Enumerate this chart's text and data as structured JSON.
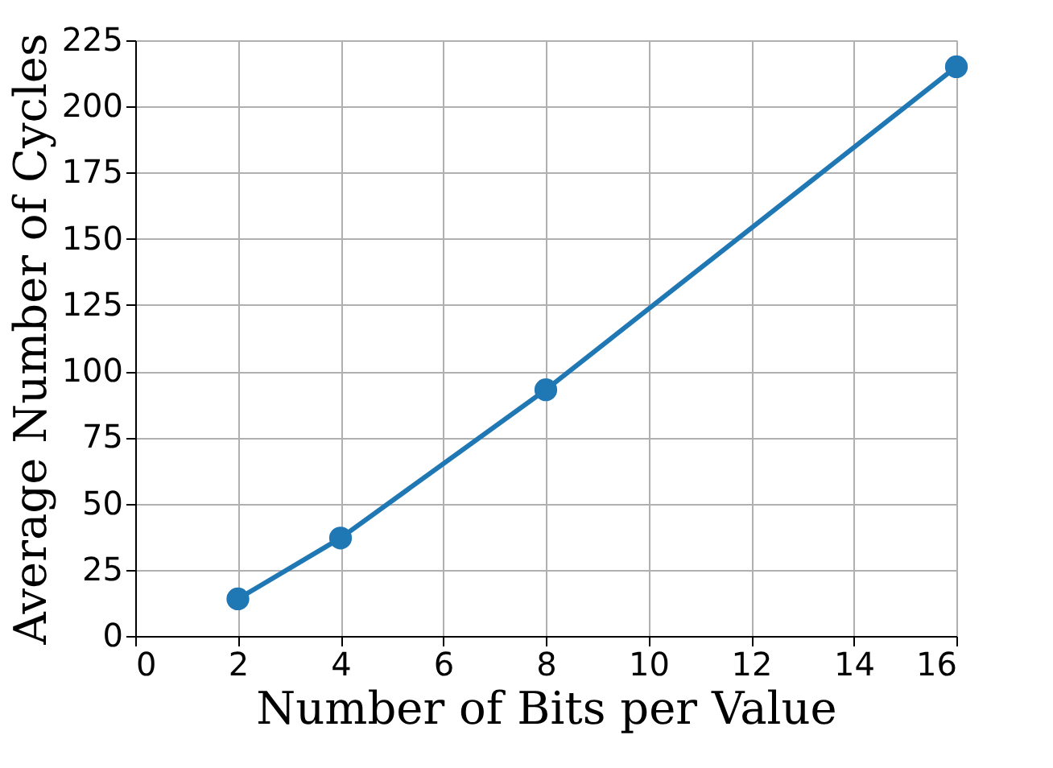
{
  "chart_data": {
    "type": "line",
    "xlabel": "Number of Bits per Value",
    "ylabel": "Average Number of Cycles",
    "x": [
      2,
      4,
      8,
      16
    ],
    "series": [
      {
        "color": "#1f77b4",
        "values": [
          14,
          37,
          93,
          215
        ]
      }
    ],
    "xlim": [
      0,
      16
    ],
    "xticks": [
      0,
      2,
      4,
      6,
      8,
      10,
      12,
      14,
      16
    ],
    "ylim": [
      0,
      225
    ],
    "yticks": [
      0,
      25,
      50,
      75,
      100,
      125,
      150,
      175,
      200,
      225
    ],
    "grid": true,
    "marker": "circle",
    "line_style": "solid"
  }
}
